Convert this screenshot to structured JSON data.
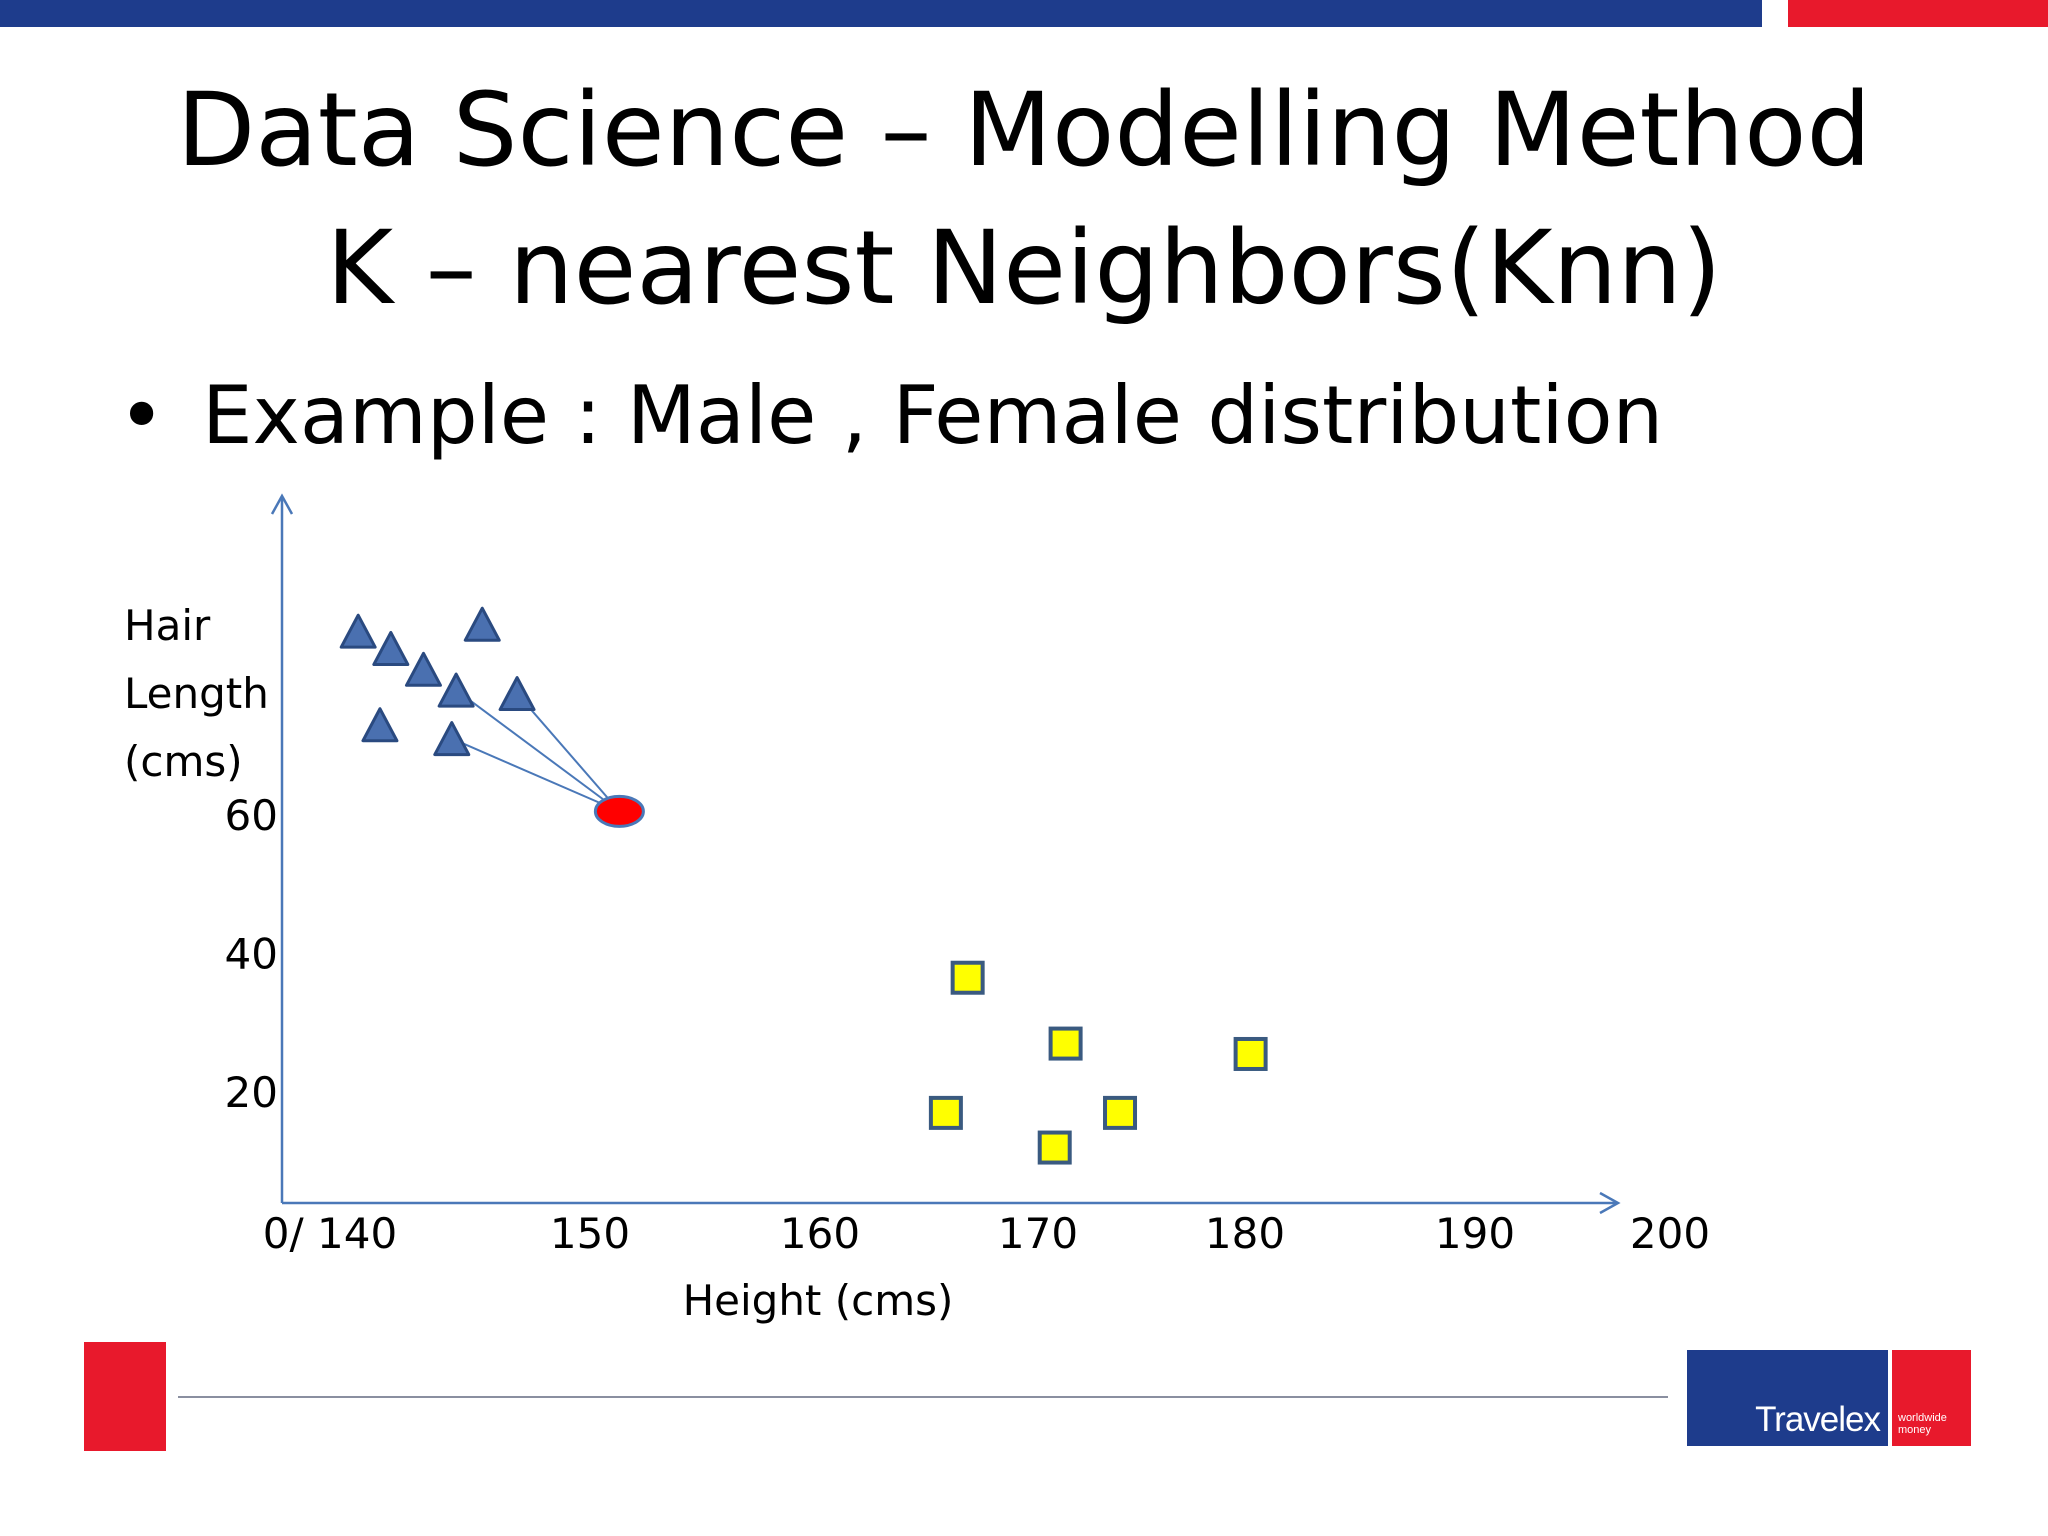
{
  "slide": {
    "title_line1": "Data Science – Modelling Method",
    "title_line2": "K – nearest Neighbors(Knn)",
    "bullet_text": "Example : Male , Female distribution",
    "logo_text": "Travelex",
    "logo_tagline_1": "worldwide",
    "logo_tagline_2": "money",
    "colors": {
      "brand_blue": "#1e3c8c",
      "brand_red": "#e8192c",
      "axis": "#4a78b8",
      "female_marker": "#4a70b0",
      "male_marker": "#ffff00",
      "query_point": "#ff0000"
    }
  },
  "chart_data": {
    "type": "scatter",
    "title": "",
    "xlabel": "Height (cms)",
    "ylabel_lines": [
      "Hair",
      "Length",
      "(cms)"
    ],
    "x_tick_labels": [
      "0/ 140",
      "150",
      "160",
      "170",
      "180",
      "190",
      "200"
    ],
    "x_ticks": [
      140,
      150,
      160,
      170,
      180,
      190,
      200
    ],
    "y_tick_labels": [
      "20",
      "40",
      "60"
    ],
    "y_ticks": [
      20,
      40,
      60
    ],
    "xlim": [
      140,
      200
    ],
    "ylim": [
      4,
      106
    ],
    "grid": false,
    "legend": "none",
    "series": [
      {
        "marker": "triangle",
        "color": "#4a70b0",
        "x": [
          143.5,
          145.0,
          146.5,
          148.0,
          150.8,
          144.5,
          147.8,
          149.2
        ],
        "y": [
          86.5,
          84.0,
          81.0,
          78.0,
          77.5,
          73.0,
          71.0,
          87.5
        ]
      },
      {
        "marker": "square",
        "color": "#ffff00",
        "x": [
          171.5,
          176.0,
          184.5,
          170.5,
          175.5,
          178.5
        ],
        "y": [
          36.5,
          27.0,
          25.5,
          17.0,
          12.0,
          17.0
        ]
      }
    ],
    "query_point": {
      "x": 155.5,
      "y": 60.5,
      "color": "#ff0000"
    },
    "neighbor_links": [
      {
        "from": [
          148.0,
          78.0
        ],
        "to": [
          155.5,
          60.5
        ]
      },
      {
        "from": [
          150.8,
          77.5
        ],
        "to": [
          155.5,
          60.5
        ]
      },
      {
        "from": [
          147.8,
          71.0
        ],
        "to": [
          155.5,
          60.5
        ]
      }
    ]
  }
}
